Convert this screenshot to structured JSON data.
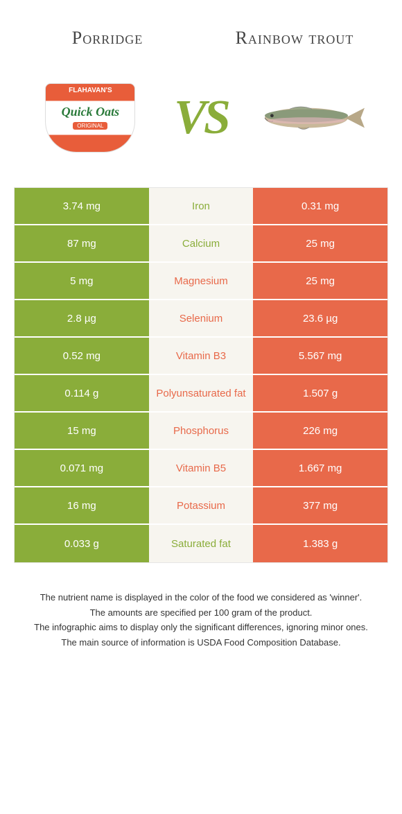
{
  "header": {
    "left_title": "Porridge",
    "right_title": "Rainbow trout",
    "vs_label": "VS"
  },
  "colors": {
    "left": "#8aad3a",
    "right": "#e8694a",
    "mid_bg": "#f7f5ef"
  },
  "rows": [
    {
      "left": "3.74 mg",
      "label": "Iron",
      "right": "0.31 mg",
      "winner": "left"
    },
    {
      "left": "87 mg",
      "label": "Calcium",
      "right": "25 mg",
      "winner": "left"
    },
    {
      "left": "5 mg",
      "label": "Magnesium",
      "right": "25 mg",
      "winner": "right"
    },
    {
      "left": "2.8 µg",
      "label": "Selenium",
      "right": "23.6 µg",
      "winner": "right"
    },
    {
      "left": "0.52 mg",
      "label": "Vitamin B3",
      "right": "5.567 mg",
      "winner": "right"
    },
    {
      "left": "0.114 g",
      "label": "Polyunsaturated fat",
      "right": "1.507 g",
      "winner": "right"
    },
    {
      "left": "15 mg",
      "label": "Phosphorus",
      "right": "226 mg",
      "winner": "right"
    },
    {
      "left": "0.071 mg",
      "label": "Vitamin B5",
      "right": "1.667 mg",
      "winner": "right"
    },
    {
      "left": "16 mg",
      "label": "Potassium",
      "right": "377 mg",
      "winner": "right"
    },
    {
      "left": "0.033 g",
      "label": "Saturated fat",
      "right": "1.383 g",
      "winner": "left"
    }
  ],
  "footer": {
    "line1": "The nutrient name is displayed in the color of the food we considered as 'winner'.",
    "line2": "The amounts are specified per 100 gram of the product.",
    "line3": "The infographic aims to display only the significant differences, ignoring minor ones.",
    "line4": "The main source of information is USDA Food Composition Database."
  }
}
